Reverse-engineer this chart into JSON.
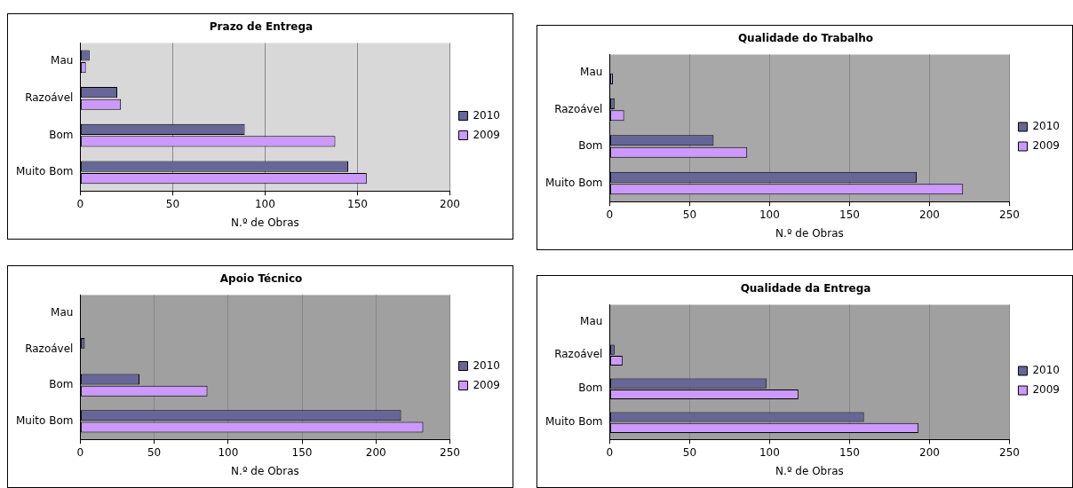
{
  "chart_data": [
    {
      "type": "bar",
      "orientation": "horizontal",
      "title": "Prazo de Entrega",
      "xlabel": "N.º de Obras",
      "categories": [
        "Mau",
        "Razoável",
        "Bom",
        "Muito Bom"
      ],
      "series": [
        {
          "name": "2010",
          "color": "#666699",
          "values": [
            5,
            20,
            89,
            145
          ]
        },
        {
          "name": "2009",
          "color": "#cc99ff",
          "values": [
            3,
            22,
            138,
            155
          ]
        }
      ],
      "xlim": [
        0,
        200
      ],
      "xticks": [
        0,
        50,
        100,
        150,
        200
      ],
      "grid": "x",
      "legend": "right"
    },
    {
      "type": "bar",
      "orientation": "horizontal",
      "title": "Qualidade do Trabalho",
      "xlabel": "N.º de Obras",
      "categories": [
        "Mau",
        "Razoável",
        "Bom",
        "Muito Bom"
      ],
      "series": [
        {
          "name": "2010",
          "color": "#666699",
          "values": [
            0,
            3,
            65,
            192
          ]
        },
        {
          "name": "2009",
          "color": "#cc99ff",
          "values": [
            2,
            9,
            86,
            221
          ]
        }
      ],
      "xlim": [
        0,
        250
      ],
      "xticks": [
        0,
        50,
        100,
        150,
        200,
        250
      ],
      "grid": "x",
      "legend": "right"
    },
    {
      "type": "bar",
      "orientation": "horizontal",
      "title": "Apoio Técnico",
      "xlabel": "N.º de Obras",
      "categories": [
        "Mau",
        "Razoável",
        "Bom",
        "Muito Bom"
      ],
      "series": [
        {
          "name": "2010",
          "color": "#666699",
          "values": [
            0,
            3,
            40,
            217
          ]
        },
        {
          "name": "2009",
          "color": "#cc99ff",
          "values": [
            0,
            0,
            86,
            232
          ]
        }
      ],
      "xlim": [
        0,
        250
      ],
      "xticks": [
        0,
        50,
        100,
        150,
        200,
        250
      ],
      "grid": "x",
      "legend": "right"
    },
    {
      "type": "bar",
      "orientation": "horizontal",
      "title": "Qualidade da Entrega",
      "xlabel": "N.º de Obras",
      "categories": [
        "Mau",
        "Razoável",
        "Bom",
        "Muito Bom"
      ],
      "series": [
        {
          "name": "2010",
          "color": "#666699",
          "values": [
            0,
            3,
            98,
            159
          ]
        },
        {
          "name": "2009",
          "color": "#cc99ff",
          "values": [
            0,
            8,
            118,
            193
          ]
        }
      ],
      "xlim": [
        0,
        250
      ],
      "xticks": [
        0,
        50,
        100,
        150,
        200,
        250
      ],
      "grid": "x",
      "legend": "right"
    }
  ]
}
